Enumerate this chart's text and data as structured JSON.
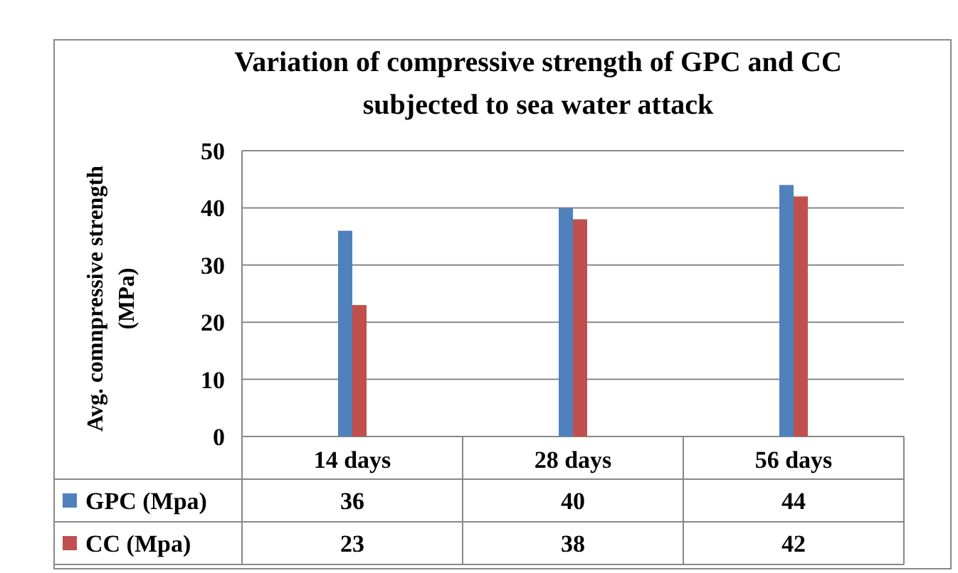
{
  "chart_data": {
    "type": "bar",
    "title": "Variation  of compressive strength of GPC and CC subjected to sea water attack",
    "ylabel": "Avg. comnpressive strength (MPa)",
    "categories": [
      "14 days",
      "28 days",
      "56 days"
    ],
    "series": [
      {
        "name": "GPC (Mpa)",
        "color": "#4f81bd",
        "values": [
          36,
          40,
          44
        ]
      },
      {
        "name": "CC (Mpa)",
        "color": "#c0504d",
        "values": [
          23,
          38,
          42
        ]
      }
    ],
    "ylim": [
      0,
      50
    ],
    "yticks": [
      0,
      10,
      20,
      30,
      40,
      50
    ],
    "grid": "y",
    "legend": "bottom",
    "data_labels": true
  }
}
